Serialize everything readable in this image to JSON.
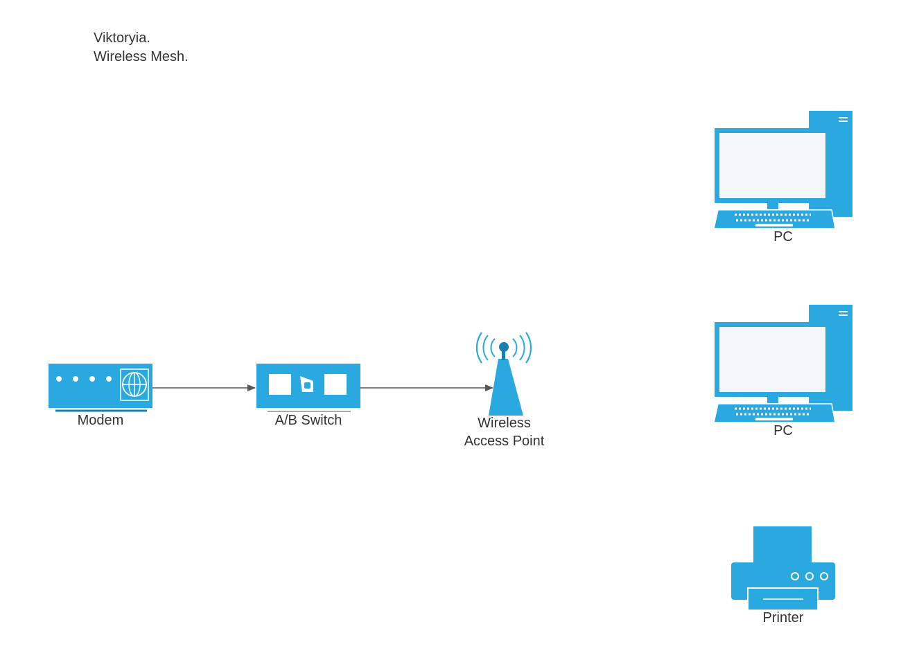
{
  "title": {
    "line1": "Viktoryia.",
    "line2": "Wireless Mesh."
  },
  "colors": {
    "device": "#29a9df",
    "device_dark": "#1a7fb0",
    "screen": "#f2f6f8",
    "edge": "#555555",
    "text": "#333333"
  },
  "nodes": {
    "modem": {
      "label": "Modem",
      "icon": "modem-icon"
    },
    "switch": {
      "label": "A/B Switch",
      "icon": "ab-switch-icon"
    },
    "wap": {
      "label_line1": "Wireless",
      "label_line2": "Access Point",
      "icon": "wireless-access-point-icon"
    },
    "pc1": {
      "label": "PC",
      "icon": "desktop-pc-icon"
    },
    "pc2": {
      "label": "PC",
      "icon": "desktop-pc-icon"
    },
    "printer": {
      "label": "Printer",
      "icon": "printer-icon"
    }
  },
  "edges": [
    {
      "from": "modem",
      "to": "switch"
    },
    {
      "from": "switch",
      "to": "wap"
    }
  ]
}
